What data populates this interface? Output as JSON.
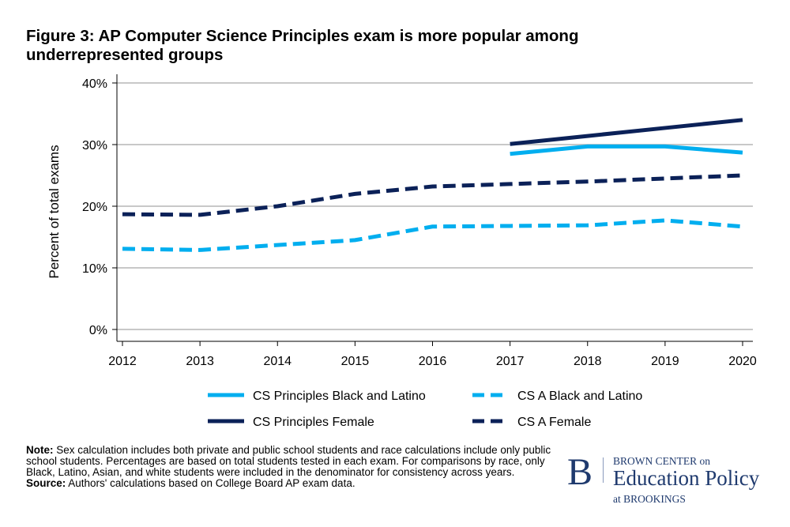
{
  "title": "Figure 3: AP Computer Science Principles exam is more popular among underrepresented groups",
  "chart_data": {
    "type": "line",
    "title": "Figure 3: AP Computer Science Principles exam is more popular among underrepresented groups",
    "xlabel": "",
    "ylabel": "Percent of total exams",
    "x": [
      2012,
      2013,
      2014,
      2015,
      2016,
      2017,
      2018,
      2019,
      2020
    ],
    "ylim": [
      0,
      40
    ],
    "yticks": [
      "0%",
      "10%",
      "20%",
      "30%",
      "40%"
    ],
    "ytick_values": [
      0,
      10,
      20,
      30,
      40
    ],
    "grid": true,
    "legend_placement": "bottom",
    "series": [
      {
        "name": "CS Principles Black and Latino",
        "color": "#00aeef",
        "style": "solid",
        "values": [
          null,
          null,
          null,
          null,
          null,
          28.5,
          29.7,
          29.7,
          28.7
        ]
      },
      {
        "name": "CS A Black and Latino",
        "color": "#00aeef",
        "style": "dashed",
        "values": [
          13.1,
          12.9,
          13.7,
          14.5,
          16.7,
          16.8,
          16.9,
          17.7,
          16.7
        ]
      },
      {
        "name": "CS Principles Female",
        "color": "#0b2158",
        "style": "solid",
        "values": [
          null,
          null,
          null,
          null,
          null,
          30.1,
          31.4,
          32.7,
          34.0
        ]
      },
      {
        "name": "CS A Female",
        "color": "#0b2158",
        "style": "dashed",
        "values": [
          18.7,
          18.6,
          20.0,
          22.0,
          23.2,
          23.6,
          24.0,
          24.5,
          25.0
        ]
      }
    ]
  },
  "note": {
    "note_label": "Note:",
    "note_text": " Sex calculation includes both private and public school students and race calculations include only public school students. Percentages are based on total students tested in each exam. For comparisons by race, only Black, Latino, Asian, and white students were included in the denominator for consistency across years.",
    "source_label": "Source:",
    "source_text": " Authors' calculations based on College Board AP exam data."
  },
  "logo": {
    "letter": "B",
    "line1": "BROWN CENTER on",
    "line2": "Education Policy",
    "line3": "at BROOKINGS"
  }
}
